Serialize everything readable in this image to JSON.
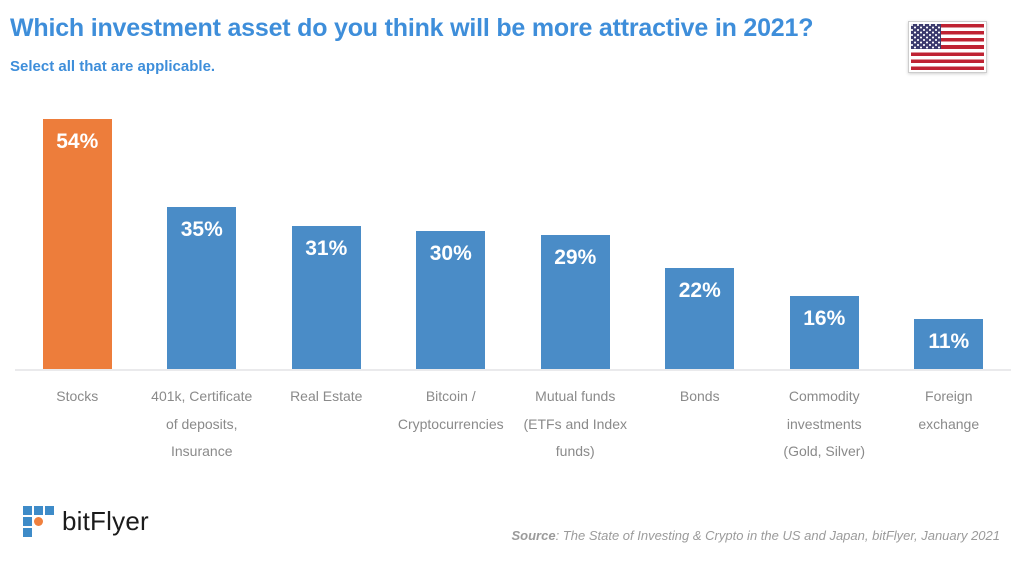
{
  "header": {
    "title": "Which investment asset do you think will be more attractive in 2021?",
    "subtitle": "Select all that are applicable.",
    "flag_country": "United States"
  },
  "chart_data": {
    "type": "bar",
    "title": "Which investment asset do you think will be more attractive in 2021?",
    "subtitle": "Select all that are applicable.",
    "categories": [
      "Stocks",
      "401k, Certificate of deposits, Insurance",
      "Real Estate",
      "Bitcoin / Cryptocurrencies",
      "Mutual funds (ETFs and Index funds)",
      "Bonds",
      "Commodity investments (Gold, Silver)",
      "Foreign exchange"
    ],
    "category_lines": [
      [
        "Stocks"
      ],
      [
        "401k, Certificate",
        "of deposits,",
        "Insurance"
      ],
      [
        "Real Estate"
      ],
      [
        "Bitcoin /",
        "Cryptocurrencies"
      ],
      [
        "Mutual funds",
        "(ETFs and Index",
        "funds)"
      ],
      [
        "Bonds"
      ],
      [
        "Commodity",
        "investments",
        "(Gold, Silver)"
      ],
      [
        "Foreign",
        "exchange"
      ]
    ],
    "values": [
      54,
      35,
      31,
      30,
      29,
      22,
      16,
      11
    ],
    "value_labels": [
      "54%",
      "35%",
      "31%",
      "30%",
      "29%",
      "22%",
      "16%",
      "11%"
    ],
    "unit": "%",
    "highlight_index": 0,
    "ylim": [
      0,
      58
    ],
    "grid": false,
    "legend": false,
    "bar_color": "#4A8CC7",
    "highlight_color": "#ED7D3B"
  },
  "footer": {
    "logo_text": "bitFlyer",
    "source_prefix": "Source",
    "source_rest": ": The State of Investing & Crypto in the US and Japan, bitFlyer, January 2021"
  },
  "colors": {
    "title_blue": "#3E8EDA",
    "axis_line": "#EAEAEC",
    "category_gray": "#8A8A8A",
    "source_gray": "#9B9B9B",
    "logo_blue": "#3E8BC8",
    "logo_orange": "#F0803E",
    "flag_red": "#BF2333",
    "flag_blue": "#3C3B6E"
  }
}
